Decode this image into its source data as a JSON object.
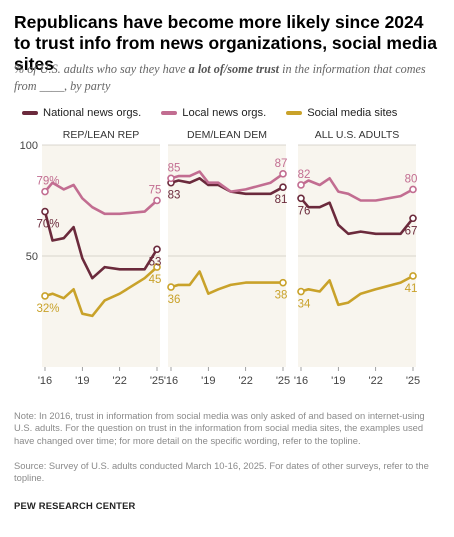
{
  "header": {
    "title": "Republicans have become more likely since 2024 to trust info from news organizations, social media sites",
    "subtitle_pre": "% of U.S. adults who say they have ",
    "subtitle_em": "a lot of/some trust",
    "subtitle_post": " in the information that comes from ____, by party"
  },
  "footer": {
    "note": "Note: In 2016, trust in information from social media was only asked of and based on internet-using U.S. adults. For the question on trust in the information from social media sites, the examples used have changed over time; for more detail on the specific wording, refer to the topline.",
    "source": "Source: Survey of U.S. adults conducted March 10-16, 2025. For dates of other surveys, refer to the topline.",
    "brand": "PEW RESEARCH CENTER"
  },
  "chart_data": {
    "type": "line",
    "ylim": [
      0,
      100
    ],
    "xlim": [
      2016,
      2025
    ],
    "y_ticks": [
      50,
      100
    ],
    "x_tick_labels": [
      {
        "x": 2016,
        "label": "'16"
      },
      {
        "x": 2019,
        "label": "'19"
      },
      {
        "x": 2022,
        "label": "'22"
      },
      {
        "x": 2025,
        "label": "'25"
      }
    ],
    "series_meta": [
      {
        "name": "National news orgs.",
        "color": "#6b2a3c"
      },
      {
        "name": "Local news orgs.",
        "color": "#c26d91"
      },
      {
        "name": "Social media sites",
        "color": "#c9a22a"
      }
    ],
    "panels": [
      {
        "title": "REP/LEAN REP",
        "series": [
          {
            "name": "National news orgs.",
            "points": [
              [
                2016,
                70
              ],
              [
                2016.6,
                57
              ],
              [
                2017.5,
                58
              ],
              [
                2018.3,
                63
              ],
              [
                2019,
                49
              ],
              [
                2019.8,
                40
              ],
              [
                2020.8,
                45
              ],
              [
                2022,
                44
              ],
              [
                2024,
                44
              ],
              [
                2025,
                53
              ]
            ],
            "start_label": "70%",
            "end_label": "53"
          },
          {
            "name": "Local news orgs.",
            "points": [
              [
                2016,
                79
              ],
              [
                2016.6,
                83
              ],
              [
                2017.5,
                80
              ],
              [
                2018.3,
                82
              ],
              [
                2019,
                76
              ],
              [
                2019.8,
                72
              ],
              [
                2020.8,
                69
              ],
              [
                2022,
                69
              ],
              [
                2024,
                70
              ],
              [
                2025,
                75
              ]
            ],
            "start_label": "79%",
            "end_label": "75"
          },
          {
            "name": "Social media sites",
            "points": [
              [
                2016,
                32
              ],
              [
                2016.6,
                33
              ],
              [
                2017.5,
                31
              ],
              [
                2018.3,
                35
              ],
              [
                2019,
                24
              ],
              [
                2019.8,
                23
              ],
              [
                2020.8,
                30
              ],
              [
                2022,
                33
              ],
              [
                2024,
                40
              ],
              [
                2025,
                45
              ]
            ],
            "start_label": "32%",
            "end_label": "45"
          }
        ]
      },
      {
        "title": "DEM/LEAN DEM",
        "series": [
          {
            "name": "National news orgs.",
            "points": [
              [
                2016,
                83
              ],
              [
                2016.6,
                84
              ],
              [
                2017.5,
                83
              ],
              [
                2018.3,
                85
              ],
              [
                2019,
                82
              ],
              [
                2019.8,
                82
              ],
              [
                2020.8,
                79
              ],
              [
                2022,
                78
              ],
              [
                2024,
                78
              ],
              [
                2025,
                81
              ]
            ],
            "start_label": "83",
            "end_label": "81"
          },
          {
            "name": "Local news orgs.",
            "points": [
              [
                2016,
                85
              ],
              [
                2016.6,
                86
              ],
              [
                2017.5,
                86
              ],
              [
                2018.3,
                88
              ],
              [
                2019,
                83
              ],
              [
                2019.8,
                83
              ],
              [
                2020.8,
                79
              ],
              [
                2022,
                80
              ],
              [
                2024,
                83
              ],
              [
                2025,
                87
              ]
            ],
            "start_label": "85",
            "end_label": "87"
          },
          {
            "name": "Social media sites",
            "points": [
              [
                2016,
                36
              ],
              [
                2016.6,
                37
              ],
              [
                2017.5,
                37
              ],
              [
                2018.3,
                43
              ],
              [
                2019,
                33
              ],
              [
                2019.8,
                35
              ],
              [
                2020.8,
                37
              ],
              [
                2022,
                38
              ],
              [
                2024,
                38
              ],
              [
                2025,
                38
              ]
            ],
            "start_label": "36",
            "end_label": "38"
          }
        ]
      },
      {
        "title": "ALL U.S. ADULTS",
        "series": [
          {
            "name": "National news orgs.",
            "points": [
              [
                2016,
                76
              ],
              [
                2016.6,
                72
              ],
              [
                2017.5,
                72
              ],
              [
                2018.3,
                74
              ],
              [
                2019,
                64
              ],
              [
                2019.8,
                60
              ],
              [
                2020.8,
                61
              ],
              [
                2022,
                60
              ],
              [
                2024,
                60
              ],
              [
                2025,
                67
              ]
            ],
            "start_label": "76",
            "end_label": "67"
          },
          {
            "name": "Local news orgs.",
            "points": [
              [
                2016,
                82
              ],
              [
                2016.6,
                84
              ],
              [
                2017.5,
                82
              ],
              [
                2018.3,
                85
              ],
              [
                2019,
                79
              ],
              [
                2019.8,
                78
              ],
              [
                2020.8,
                75
              ],
              [
                2022,
                75
              ],
              [
                2024,
                77
              ],
              [
                2025,
                80
              ]
            ],
            "start_label": "82",
            "end_label": "80"
          },
          {
            "name": "Social media sites",
            "points": [
              [
                2016,
                34
              ],
              [
                2016.6,
                35
              ],
              [
                2017.5,
                34
              ],
              [
                2018.3,
                39
              ],
              [
                2019,
                28
              ],
              [
                2019.8,
                29
              ],
              [
                2020.8,
                33
              ],
              [
                2022,
                35
              ],
              [
                2024,
                38
              ],
              [
                2025,
                41
              ]
            ],
            "start_label": "34",
            "end_label": "41"
          }
        ]
      }
    ]
  }
}
